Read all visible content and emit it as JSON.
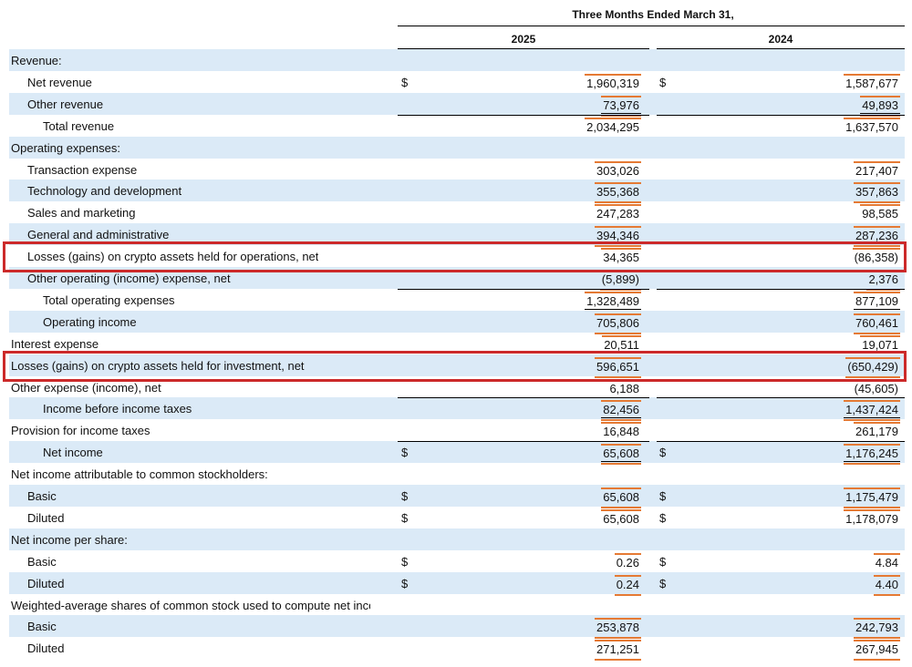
{
  "header": {
    "period": "Three Months Ended March 31,",
    "col1": "2025",
    "col2": "2024"
  },
  "rows": [
    {
      "label": "Revenue:",
      "indent": 0,
      "shaded": true,
      "v25": "",
      "v24": "",
      "dollar": false
    },
    {
      "label": "Net revenue",
      "indent": 1,
      "shaded": false,
      "v25": "1,960,319",
      "v24": "1,587,677",
      "dollar": true
    },
    {
      "label": "Other revenue",
      "indent": 1,
      "shaded": true,
      "v25": "73,976",
      "v24": "49,893",
      "dollar": false
    },
    {
      "label": "Total revenue",
      "indent": 2,
      "shaded": false,
      "v25": "2,034,295",
      "v24": "1,637,570",
      "dollar": false
    },
    {
      "label": "Operating expenses:",
      "indent": 0,
      "shaded": true,
      "v25": "",
      "v24": "",
      "dollar": false
    },
    {
      "label": "Transaction expense",
      "indent": 1,
      "shaded": false,
      "v25": "303,026",
      "v24": "217,407",
      "dollar": false
    },
    {
      "label": "Technology and development",
      "indent": 1,
      "shaded": true,
      "v25": "355,368",
      "v24": "357,863",
      "dollar": false
    },
    {
      "label": "Sales and marketing",
      "indent": 1,
      "shaded": false,
      "v25": "247,283",
      "v24": "98,585",
      "dollar": false
    },
    {
      "label": "General and administrative",
      "indent": 1,
      "shaded": true,
      "v25": "394,346",
      "v24": "287,236",
      "dollar": false
    },
    {
      "label": "Losses (gains) on crypto assets held for operations, net",
      "indent": 1,
      "shaded": false,
      "v25": "34,365",
      "v24": "(86,358)",
      "dollar": false
    },
    {
      "label": "Other operating (income) expense, net",
      "indent": 1,
      "shaded": true,
      "v25": "(5,899)",
      "v24": "2,376",
      "dollar": false
    },
    {
      "label": "Total operating expenses",
      "indent": 2,
      "shaded": false,
      "v25": "1,328,489",
      "v24": "877,109",
      "dollar": false
    },
    {
      "label": "Operating income",
      "indent": 2,
      "shaded": true,
      "v25": "705,806",
      "v24": "760,461",
      "dollar": false
    },
    {
      "label": "Interest expense",
      "indent": 0,
      "shaded": false,
      "v25": "20,511",
      "v24": "19,071",
      "dollar": false
    },
    {
      "label": "Losses (gains) on crypto assets held for investment, net",
      "indent": 0,
      "shaded": true,
      "v25": "596,651",
      "v24": "(650,429)",
      "dollar": false
    },
    {
      "label": "Other expense (income), net",
      "indent": 0,
      "shaded": false,
      "v25": "6,188",
      "v24": "(45,605)",
      "dollar": false
    },
    {
      "label": "Income before income taxes",
      "indent": 2,
      "shaded": true,
      "v25": "82,456",
      "v24": "1,437,424",
      "dollar": false
    },
    {
      "label": "Provision for income taxes",
      "indent": 0,
      "shaded": false,
      "v25": "16,848",
      "v24": "261,179",
      "dollar": false
    },
    {
      "label": "Net income",
      "indent": 2,
      "shaded": true,
      "v25": "65,608",
      "v24": "1,176,245",
      "dollar": true
    },
    {
      "label": "Net income attributable to common stockholders:",
      "indent": 0,
      "shaded": false,
      "v25": "",
      "v24": "",
      "dollar": false
    },
    {
      "label": "Basic",
      "indent": 1,
      "shaded": true,
      "v25": "65,608",
      "v24": "1,175,479",
      "dollar": true
    },
    {
      "label": "Diluted",
      "indent": 1,
      "shaded": false,
      "v25": "65,608",
      "v24": "1,178,079",
      "dollar": true
    },
    {
      "label": "Net income per share:",
      "indent": 0,
      "shaded": true,
      "v25": "",
      "v24": "",
      "dollar": false
    },
    {
      "label": "Basic",
      "indent": 1,
      "shaded": false,
      "v25": "0.26",
      "v24": "4.84",
      "dollar": true
    },
    {
      "label": "Diluted",
      "indent": 1,
      "shaded": true,
      "v25": "0.24",
      "v24": "4.40",
      "dollar": true
    },
    {
      "label": "Weighted-average shares of common stock used to compute net income per share:",
      "indent": 0,
      "shaded": false,
      "v25": "",
      "v24": "",
      "dollar": false
    },
    {
      "label": "Basic",
      "indent": 1,
      "shaded": true,
      "v25": "253,878",
      "v24": "242,793",
      "dollar": false
    },
    {
      "label": "Diluted",
      "indent": 1,
      "shaded": false,
      "v25": "271,251",
      "v24": "267,945",
      "dollar": false
    }
  ],
  "currency_symbol": "$",
  "colors": {
    "row_shade": "#dbeaf7",
    "highlight_box": "#cc2a2a",
    "underline_accent": "#e57a34"
  }
}
